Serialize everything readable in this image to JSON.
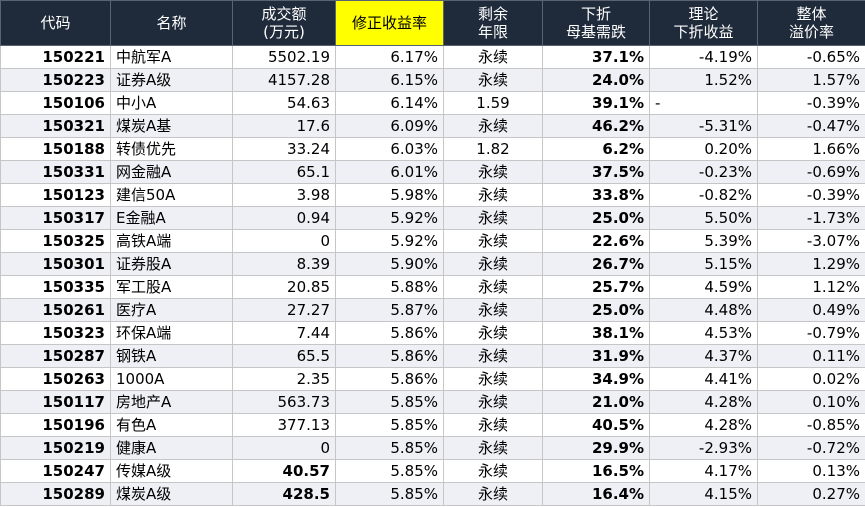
{
  "headers": {
    "code": "代码",
    "name": "名称",
    "volume_l1": "成交额",
    "volume_l2": "(万元)",
    "adj_yield": "修正收益率",
    "term_l1": "剩余",
    "term_l2": "年限",
    "drop_l1": "下折",
    "drop_l2": "母基需跌",
    "theo_l1": "理论",
    "theo_l2": "下折收益",
    "prem_l1": "整体",
    "prem_l2": "溢价率"
  },
  "rows": [
    {
      "code": "150221",
      "name": "中航军A",
      "volume": "5502.19",
      "adj_yield": "6.17%",
      "term": "永续",
      "drop": "37.1%",
      "theo": "-4.19%",
      "prem": "-0.65%"
    },
    {
      "code": "150223",
      "name": "证券A级",
      "volume": "4157.28",
      "adj_yield": "6.15%",
      "term": "永续",
      "drop": "24.0%",
      "theo": "1.52%",
      "prem": "1.57%"
    },
    {
      "code": "150106",
      "name": "中小A",
      "volume": "54.63",
      "adj_yield": "6.14%",
      "term": "1.59",
      "drop": "39.1%",
      "theo": "-",
      "prem": "-0.39%"
    },
    {
      "code": "150321",
      "name": "煤炭A基",
      "volume": "17.6",
      "adj_yield": "6.09%",
      "term": "永续",
      "drop": "46.2%",
      "theo": "-5.31%",
      "prem": "-0.47%"
    },
    {
      "code": "150188",
      "name": "转债优先",
      "volume": "33.24",
      "adj_yield": "6.03%",
      "term": "1.82",
      "drop": "6.2%",
      "theo": "0.20%",
      "prem": "1.66%"
    },
    {
      "code": "150331",
      "name": "网金融A",
      "volume": "65.1",
      "adj_yield": "6.01%",
      "term": "永续",
      "drop": "37.5%",
      "theo": "-0.23%",
      "prem": "-0.69%"
    },
    {
      "code": "150123",
      "name": "建信50A",
      "volume": "3.98",
      "adj_yield": "5.98%",
      "term": "永续",
      "drop": "33.8%",
      "theo": "-0.82%",
      "prem": "-0.39%"
    },
    {
      "code": "150317",
      "name": "E金融A",
      "volume": "0.94",
      "adj_yield": "5.92%",
      "term": "永续",
      "drop": "25.0%",
      "theo": "5.50%",
      "prem": "-1.73%"
    },
    {
      "code": "150325",
      "name": "高铁A端",
      "volume": "0",
      "adj_yield": "5.92%",
      "term": "永续",
      "drop": "22.6%",
      "theo": "5.39%",
      "prem": "-3.07%"
    },
    {
      "code": "150301",
      "name": "证券股A",
      "volume": "8.39",
      "adj_yield": "5.90%",
      "term": "永续",
      "drop": "26.7%",
      "theo": "5.15%",
      "prem": "1.29%"
    },
    {
      "code": "150335",
      "name": "军工股A",
      "volume": "20.85",
      "adj_yield": "5.88%",
      "term": "永续",
      "drop": "25.7%",
      "theo": "4.59%",
      "prem": "1.12%"
    },
    {
      "code": "150261",
      "name": "医疗A",
      "volume": "27.27",
      "adj_yield": "5.87%",
      "term": "永续",
      "drop": "25.0%",
      "theo": "4.48%",
      "prem": "0.49%"
    },
    {
      "code": "150323",
      "name": "环保A端",
      "volume": "7.44",
      "adj_yield": "5.86%",
      "term": "永续",
      "drop": "38.1%",
      "theo": "4.53%",
      "prem": "-0.79%"
    },
    {
      "code": "150287",
      "name": "钢铁A",
      "volume": "65.5",
      "adj_yield": "5.86%",
      "term": "永续",
      "drop": "31.9%",
      "theo": "4.37%",
      "prem": "0.11%"
    },
    {
      "code": "150263",
      "name": "1000A",
      "volume": "2.35",
      "adj_yield": "5.86%",
      "term": "永续",
      "drop": "34.9%",
      "theo": "4.41%",
      "prem": "0.02%"
    },
    {
      "code": "150117",
      "name": "房地产A",
      "volume": "563.73",
      "adj_yield": "5.85%",
      "term": "永续",
      "drop": "21.0%",
      "theo": "4.28%",
      "prem": "0.10%"
    },
    {
      "code": "150196",
      "name": "有色A",
      "volume": "377.13",
      "adj_yield": "5.85%",
      "term": "永续",
      "drop": "40.5%",
      "theo": "4.28%",
      "prem": "-0.85%"
    },
    {
      "code": "150219",
      "name": "健康A",
      "volume": "0",
      "adj_yield": "5.85%",
      "term": "永续",
      "drop": "29.9%",
      "theo": "-2.93%",
      "prem": "-0.72%"
    },
    {
      "code": "150247",
      "name": "传媒A级",
      "volume": "40.57",
      "adj_yield": "5.85%",
      "term": "永续",
      "drop": "16.5%",
      "theo": "4.17%",
      "prem": "0.13%"
    },
    {
      "code": "150289",
      "name": "煤炭A级",
      "volume": "428.5",
      "adj_yield": "5.85%",
      "term": "永续",
      "drop": "16.4%",
      "theo": "4.15%",
      "prem": "0.27%"
    }
  ],
  "colors": {
    "header_bg": "#1f2a3a",
    "header_text": "#ffffff",
    "highlight_bg": "#ffff00",
    "stripe_bg": "#efeff6"
  }
}
